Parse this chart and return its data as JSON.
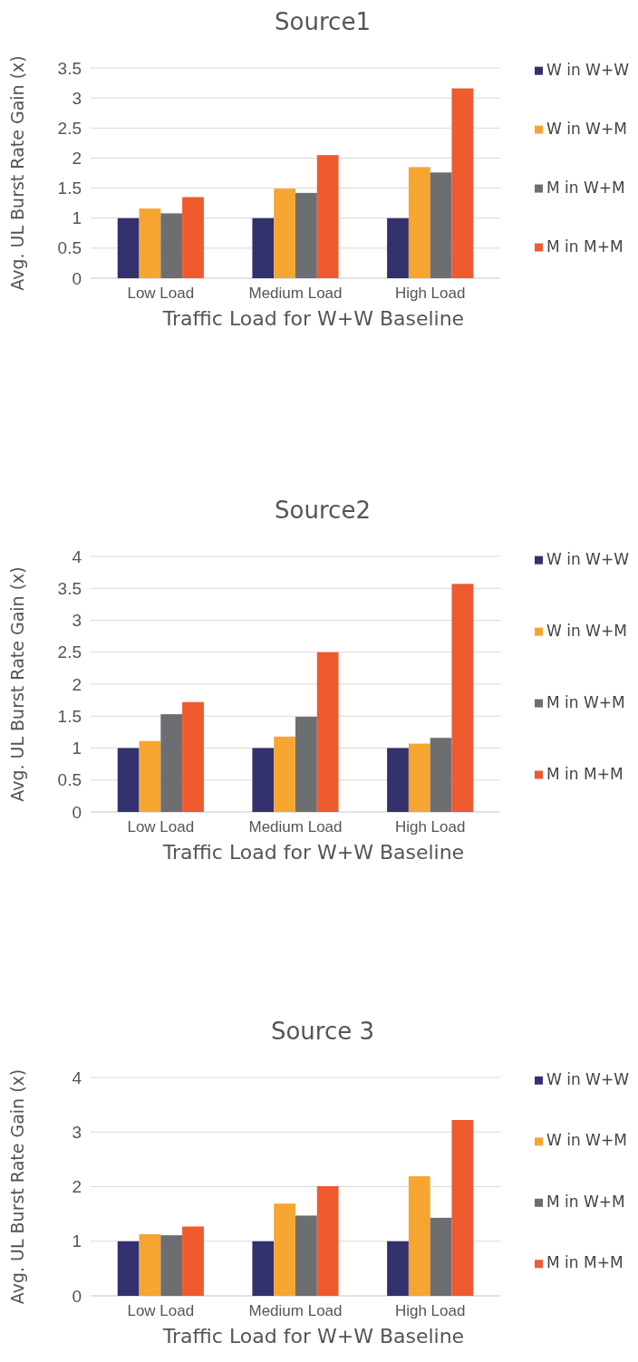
{
  "chart_data": [
    {
      "type": "bar",
      "title": "Source1",
      "xlabel": "Traffic Load for W+W Baseline",
      "ylabel": "Avg. UL Burst Rate Gain (x)",
      "categories": [
        "Low Load",
        "Medium Load",
        "High Load"
      ],
      "series": [
        {
          "name": "W in W+W",
          "color": "#32316e",
          "values": [
            1,
            1,
            1
          ]
        },
        {
          "name": "W in W+M",
          "color": "#f7a531",
          "values": [
            1.16,
            1.49,
            1.85
          ]
        },
        {
          "name": "M in W+M",
          "color": "#6d6e71",
          "values": [
            1.08,
            1.42,
            1.76
          ]
        },
        {
          "name": "M in M+M",
          "color": "#ef5a2f",
          "values": [
            1.35,
            2.05,
            3.16
          ]
        }
      ],
      "ylim": [
        0,
        3.5
      ],
      "yticks": [
        0,
        0.5,
        1,
        1.5,
        2,
        2.5,
        3,
        3.5
      ],
      "grid": "y",
      "legend": "right"
    },
    {
      "type": "bar",
      "title": "Source2",
      "xlabel": "Traffic Load for W+W Baseline",
      "ylabel": "Avg. UL Burst Rate Gain (x)",
      "categories": [
        "Low Load",
        "Medium Load",
        "High Load"
      ],
      "series": [
        {
          "name": "W in W+W",
          "color": "#32316e",
          "values": [
            1,
            1,
            1
          ]
        },
        {
          "name": "W in W+M",
          "color": "#f7a531",
          "values": [
            1.11,
            1.18,
            1.07
          ]
        },
        {
          "name": "M in W+M",
          "color": "#6d6e71",
          "values": [
            1.53,
            1.49,
            1.16
          ]
        },
        {
          "name": "M in M+M",
          "color": "#ef5a2f",
          "values": [
            1.72,
            2.5,
            3.57
          ]
        }
      ],
      "ylim": [
        0,
        4
      ],
      "yticks": [
        0,
        0.5,
        1,
        1.5,
        2,
        2.5,
        3,
        3.5,
        4
      ],
      "grid": "y",
      "legend": "right"
    },
    {
      "type": "bar",
      "title": "Source 3",
      "xlabel": "Traffic Load for W+W Baseline",
      "ylabel": "Avg. UL Burst Rate Gain (x)",
      "categories": [
        "Low Load",
        "Medium Load",
        "High Load"
      ],
      "series": [
        {
          "name": "W in W+W",
          "color": "#32316e",
          "values": [
            1,
            1,
            1
          ]
        },
        {
          "name": "W in W+M",
          "color": "#f7a531",
          "values": [
            1.13,
            1.69,
            2.19
          ]
        },
        {
          "name": "M in W+M",
          "color": "#6d6e71",
          "values": [
            1.11,
            1.47,
            1.43
          ]
        },
        {
          "name": "M in M+M",
          "color": "#ef5a2f",
          "values": [
            1.27,
            2.01,
            3.22
          ]
        }
      ],
      "ylim": [
        0,
        4
      ],
      "yticks": [
        0,
        1,
        2,
        3,
        4
      ],
      "grid": "y",
      "legend": "right"
    }
  ]
}
